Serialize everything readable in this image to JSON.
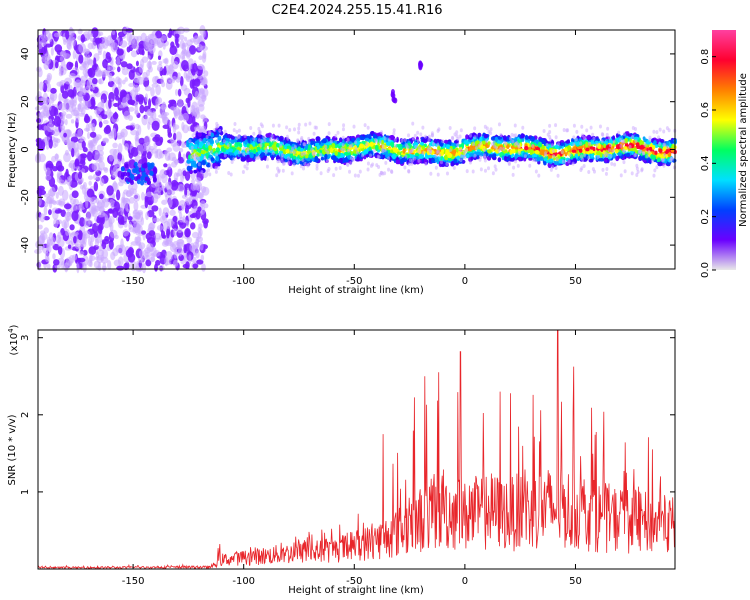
{
  "title": "C2E4.2024.255.15.41.R16",
  "chart_data": [
    {
      "type": "heatmap",
      "xlabel": "Height of straight line (km)",
      "ylabel": "Frequency (Hz)",
      "xlim": [
        -193,
        95
      ],
      "ylim": [
        -50,
        50
      ],
      "xticks": [
        -150,
        -100,
        -50,
        0,
        50
      ],
      "yticks": [
        -40,
        -20,
        0,
        20,
        40
      ],
      "colorbar": {
        "label": "Normalized spectral amplitude",
        "range": [
          0,
          0.9
        ],
        "ticks": [
          0.0,
          0.2,
          0.4,
          0.6,
          0.8
        ],
        "colormap": [
          "#e8e8e8",
          "#6a00ff",
          "#0040ff",
          "#00e0ff",
          "#00ff60",
          "#ffff00",
          "#ff8000",
          "#ff0030",
          "#ff40a0"
        ]
      },
      "description_features": {
        "noise_region_x": [
          -193,
          -125
        ],
        "signal_band_x": [
          -125,
          95
        ],
        "signal_center_freq_hz": 0,
        "signal_band_halfwidth_hz": 5,
        "low_freq_patch": {
          "x": [
            -155,
            -140
          ],
          "freq": -10
        },
        "isolated_blobs": [
          {
            "x": -32,
            "freq": 22
          },
          {
            "x": -20,
            "freq": 34
          }
        ]
      }
    },
    {
      "type": "line",
      "xlabel": "Height of straight line (km)",
      "ylabel": "SNR (10 * v/v)",
      "y_multiplier_label": "(x10",
      "y_multiplier_exp": "4",
      "y_multiplier_close": ")",
      "xlim": [
        -193,
        95
      ],
      "ylim": [
        0,
        3.1
      ],
      "xticks": [
        -150,
        -100,
        -50,
        0,
        50
      ],
      "yticks": [
        1,
        2,
        3
      ],
      "series": [
        {
          "color": "#e8252a",
          "envelope": {
            "x": [
              -193,
              -115,
              -110,
              -100,
              -80,
              -60,
              -40,
              -30,
              -20,
              -10,
              0,
              10,
              20,
              30,
              40,
              50,
              60,
              70,
              80,
              95
            ],
            "y_max": [
              0.04,
              0.06,
              0.38,
              0.3,
              0.45,
              0.6,
              1.0,
              1.7,
              2.5,
              2.8,
              2.2,
              2.5,
              2.3,
              2.4,
              3.1,
              2.6,
              2.1,
              2.0,
              1.8,
              1.6
            ],
            "y_typ": [
              0.02,
              0.03,
              0.15,
              0.18,
              0.25,
              0.3,
              0.45,
              0.6,
              0.8,
              0.95,
              0.85,
              0.95,
              0.9,
              0.95,
              1.0,
              0.95,
              0.85,
              0.8,
              0.75,
              0.7
            ]
          },
          "notable_peaks": [
            {
              "x": -37,
              "y": 1.75
            },
            {
              "x": -18,
              "y": 2.5
            },
            {
              "x": -2,
              "y": 2.82
            },
            {
              "x": 42,
              "y": 3.1
            }
          ]
        }
      ]
    }
  ]
}
